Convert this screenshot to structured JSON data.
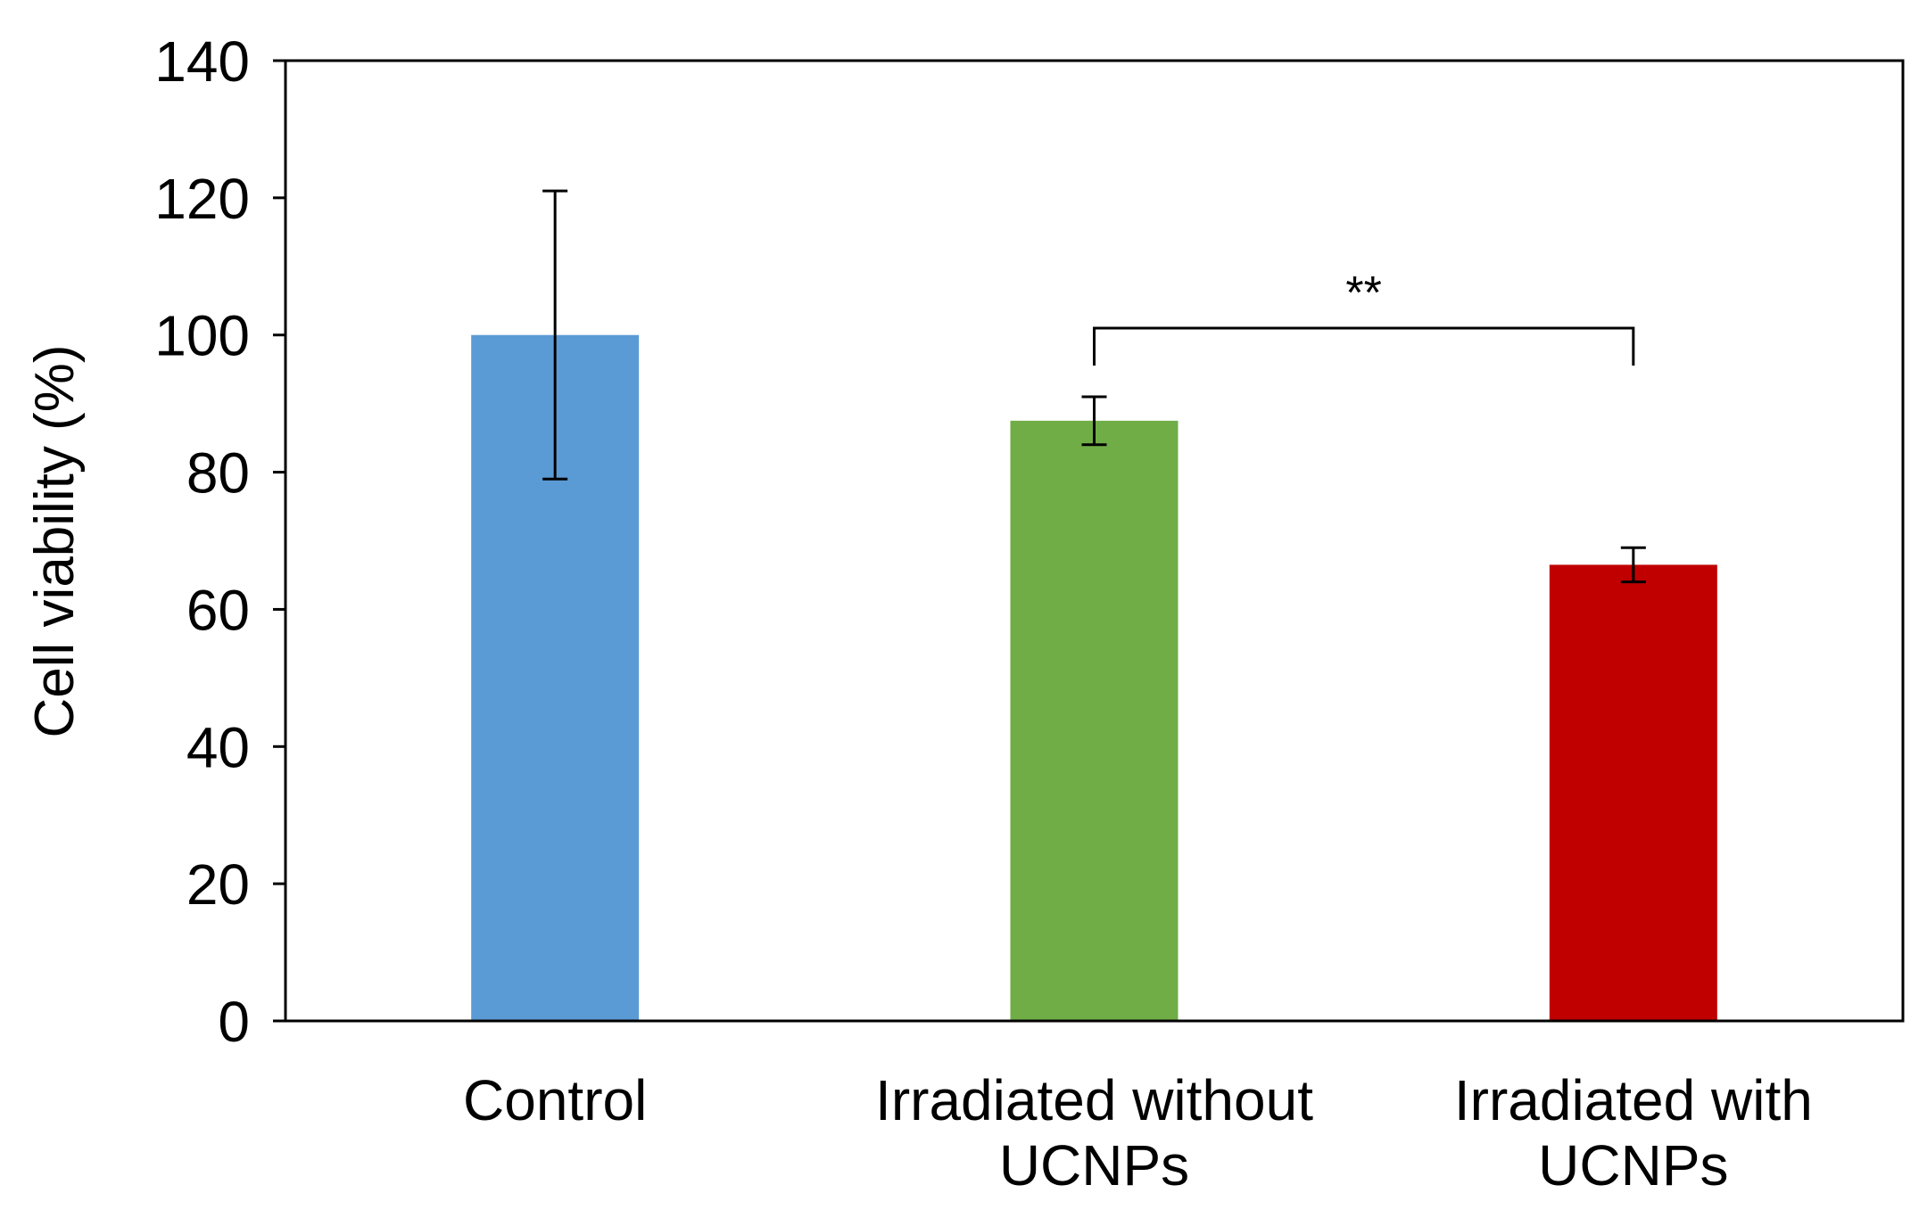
{
  "chart_data": {
    "type": "bar",
    "title": "",
    "xlabel": "",
    "ylabel": "Cell viability (%)",
    "ylim": [
      0,
      140
    ],
    "yticks": [
      0,
      20,
      40,
      60,
      80,
      100,
      120,
      140
    ],
    "grid": false,
    "legend": "none",
    "categories": [
      [
        "Control"
      ],
      [
        "Irradiated without",
        "UCNPs"
      ],
      [
        "Irradiated with",
        "UCNPs"
      ]
    ],
    "values": [
      100,
      87.5,
      66.5
    ],
    "errors": [
      21,
      3.5,
      2.5
    ],
    "colors": [
      "#5b9bd5",
      "#70ad47",
      "#c00000"
    ],
    "significance": {
      "label": "**",
      "between": [
        1,
        2
      ],
      "y": 101
    }
  }
}
